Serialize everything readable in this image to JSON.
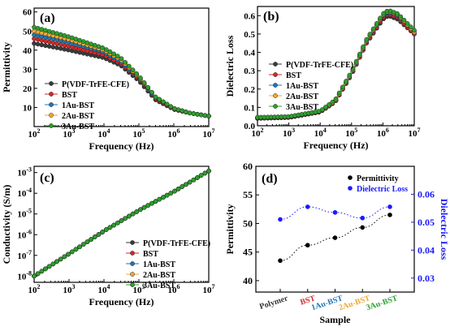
{
  "series_names": [
    "P(VDF-TrFE-CFE)",
    "BST",
    "1Au-BST",
    "2Au-BST",
    "3Au-BST"
  ],
  "series_colors": [
    "#3a3a3a",
    "#d62728",
    "#1f77b4",
    "#f0a830",
    "#2ca02c"
  ],
  "chart_data": [
    {
      "panel": "(a)",
      "type": "line",
      "xscale": "log",
      "xlim": [
        100,
        10000000
      ],
      "ylim": [
        0,
        62
      ],
      "xlabel": "Frequency (Hz)",
      "ylabel": "Permittivity",
      "xticks": [
        "10^2",
        "10^3",
        "10^4",
        "10^5",
        "10^6",
        "10^7"
      ],
      "yticks": [
        "10",
        "20",
        "30",
        "40",
        "50",
        "60"
      ],
      "legend": "center-left",
      "series": [
        {
          "name": "P(VDF-TrFE-CFE)",
          "x": [
            100,
            1000,
            10000,
            30000,
            100000,
            300000,
            1000000,
            3000000,
            10000000
          ],
          "y": [
            43.5,
            40,
            36,
            32,
            24,
            14,
            9,
            7,
            5.5
          ]
        },
        {
          "name": "BST",
          "x": [
            100,
            1000,
            10000,
            30000,
            100000,
            300000,
            1000000,
            3000000,
            10000000
          ],
          "y": [
            46,
            42,
            37.5,
            33,
            25,
            14.5,
            9,
            7,
            5.5
          ]
        },
        {
          "name": "1Au-BST",
          "x": [
            100,
            1000,
            10000,
            30000,
            100000,
            300000,
            1000000,
            3000000,
            10000000
          ],
          "y": [
            48,
            44,
            39,
            34,
            25.5,
            15,
            9.5,
            7,
            5.5
          ]
        },
        {
          "name": "2Au-BST",
          "x": [
            100,
            1000,
            10000,
            30000,
            100000,
            300000,
            1000000,
            3000000,
            10000000
          ],
          "y": [
            50,
            45.5,
            40,
            35,
            26,
            15.5,
            9.5,
            7,
            5.5
          ]
        },
        {
          "name": "3Au-BST",
          "x": [
            100,
            1000,
            10000,
            30000,
            100000,
            300000,
            1000000,
            3000000,
            10000000
          ],
          "y": [
            52,
            47,
            41,
            36,
            26.5,
            15.5,
            9.5,
            7,
            5.5
          ]
        }
      ]
    },
    {
      "panel": "(b)",
      "type": "line",
      "xscale": "log",
      "xlim": [
        100,
        10000000
      ],
      "ylim": [
        0,
        0.65
      ],
      "xlabel": "Frequency (Hz)",
      "ylabel": "Dielectric Loss",
      "xticks": [
        "10^2",
        "10^3",
        "10^4",
        "10^5",
        "10^6",
        "10^7"
      ],
      "yticks": [
        "0.0",
        "0.1",
        "0.2",
        "0.3",
        "0.4",
        "0.5",
        "0.6"
      ],
      "legend": "center-left",
      "series": [
        {
          "name": "P(VDF-TrFE-CFE)",
          "x": [
            100,
            1000,
            10000,
            30000,
            100000,
            300000,
            1000000,
            1500000,
            3000000,
            10000000
          ],
          "y": [
            0.04,
            0.045,
            0.075,
            0.13,
            0.28,
            0.45,
            0.58,
            0.6,
            0.58,
            0.5
          ]
        },
        {
          "name": "BST",
          "x": [
            100,
            1000,
            10000,
            30000,
            100000,
            300000,
            1000000,
            1500000,
            3000000,
            10000000
          ],
          "y": [
            0.04,
            0.045,
            0.075,
            0.13,
            0.28,
            0.45,
            0.59,
            0.61,
            0.59,
            0.5
          ]
        },
        {
          "name": "1Au-BST",
          "x": [
            100,
            1000,
            10000,
            30000,
            100000,
            300000,
            1000000,
            1500000,
            3000000,
            10000000
          ],
          "y": [
            0.042,
            0.047,
            0.077,
            0.135,
            0.285,
            0.46,
            0.6,
            0.62,
            0.6,
            0.51
          ]
        },
        {
          "name": "2Au-BST",
          "x": [
            100,
            1000,
            10000,
            30000,
            100000,
            300000,
            1000000,
            1500000,
            3000000,
            10000000
          ],
          "y": [
            0.044,
            0.048,
            0.078,
            0.135,
            0.29,
            0.465,
            0.605,
            0.625,
            0.605,
            0.51
          ]
        },
        {
          "name": "3Au-BST",
          "x": [
            100,
            1000,
            10000,
            30000,
            100000,
            300000,
            1000000,
            1500000,
            3000000,
            10000000
          ],
          "y": [
            0.046,
            0.05,
            0.08,
            0.14,
            0.295,
            0.47,
            0.61,
            0.63,
            0.61,
            0.52
          ]
        }
      ]
    },
    {
      "panel": "(c)",
      "type": "line",
      "xscale": "log",
      "yscale": "log",
      "xlim": [
        100,
        10000000
      ],
      "ylim": [
        5e-09,
        0.002
      ],
      "xlabel": "Frequency (Hz)",
      "ylabel": "Conductivity (S/m)",
      "xticks": [
        "10^2",
        "10^3",
        "10^4",
        "10^5",
        "10^6",
        "10^7"
      ],
      "yticks": [
        "10^-8",
        "10^-7",
        "10^-6",
        "10^-5",
        "10^-4",
        "10^-3"
      ],
      "legend": "bottom-right",
      "series": [
        {
          "name": "P(VDF-TrFE-CFE)",
          "x": [
            100,
            1000,
            10000,
            100000,
            1000000,
            10000000
          ],
          "y": [
            1e-08,
            1.2e-07,
            1.5e-06,
            1.5e-05,
            0.00012,
            0.0012
          ]
        },
        {
          "name": "BST",
          "x": [
            100,
            1000,
            10000,
            100000,
            1000000,
            10000000
          ],
          "y": [
            1e-08,
            1.2e-07,
            1.5e-06,
            1.5e-05,
            0.00012,
            0.0012
          ]
        },
        {
          "name": "1Au-BST",
          "x": [
            100,
            1000,
            10000,
            100000,
            1000000,
            10000000
          ],
          "y": [
            1e-08,
            1.2e-07,
            1.5e-06,
            1.5e-05,
            0.00012,
            0.0012
          ]
        },
        {
          "name": "2Au-BST",
          "x": [
            100,
            1000,
            10000,
            100000,
            1000000,
            10000000
          ],
          "y": [
            1e-08,
            1.2e-07,
            1.5e-06,
            1.5e-05,
            0.00012,
            0.0012
          ]
        },
        {
          "name": "3Au-BST",
          "x": [
            100,
            1000,
            10000,
            100000,
            1000000,
            10000000
          ],
          "y": [
            1e-08,
            1.2e-07,
            1.5e-06,
            1.5e-05,
            0.00012,
            0.0012
          ]
        }
      ]
    },
    {
      "panel": "(d)",
      "type": "scatter",
      "xlabel": "Sample",
      "ylabel": "Permittivity",
      "ylabel_right": "Dielectric Loss",
      "categories": [
        "Polymer",
        "BST",
        "1Au-BST",
        "2Au-BST",
        "3Au-BST"
      ],
      "category_colors": [
        "#333333",
        "#d62728",
        "#1f77b4",
        "#f0a830",
        "#2ca02c"
      ],
      "ylim": [
        38,
        60
      ],
      "ylim_right": [
        0.025,
        0.07
      ],
      "yticks": [
        "40",
        "45",
        "50",
        "55",
        "60"
      ],
      "yticks_right": [
        "0.03",
        "0.04",
        "0.05",
        "0.06"
      ],
      "legend": "top-right",
      "series": [
        {
          "name": "Permittivity",
          "axis": "left",
          "color": "#000000",
          "values": [
            43.5,
            46.2,
            47.5,
            49.3,
            51.5
          ]
        },
        {
          "name": "Dielectric Loss",
          "axis": "right",
          "color": "#1a1aff",
          "values": [
            0.051,
            0.0555,
            0.0535,
            0.0515,
            0.0555
          ]
        }
      ]
    }
  ]
}
